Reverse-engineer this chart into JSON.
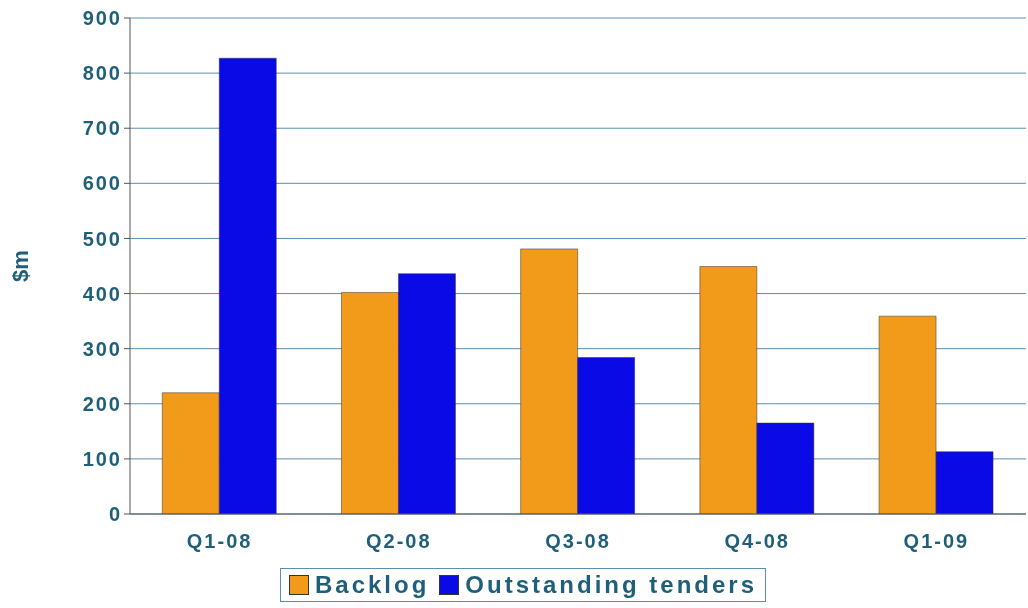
{
  "chart_data": {
    "type": "bar",
    "ylabel": "$m",
    "categories": [
      "Q1-08",
      "Q2-08",
      "Q3-08",
      "Q4-08",
      "Q1-09"
    ],
    "series": [
      {
        "name": "Backlog",
        "color": "#f29b1a",
        "values": [
          220,
          402,
          481,
          449,
          359
        ]
      },
      {
        "name": "Outstanding tenders",
        "color": "#0a0ae6",
        "values": [
          827,
          436,
          284,
          165,
          113
        ]
      }
    ],
    "ylim": [
      0,
      900
    ],
    "yticks": [
      0,
      100,
      200,
      300,
      400,
      500,
      600,
      700,
      800,
      900
    ],
    "grid": "y",
    "legend": "bottom"
  }
}
